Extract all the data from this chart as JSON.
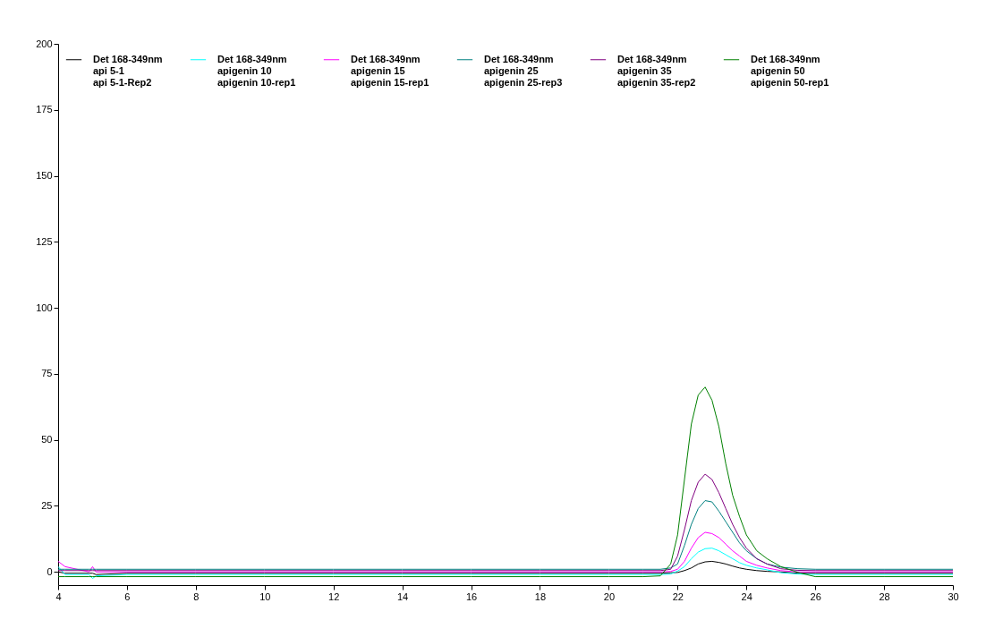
{
  "chart_data": {
    "type": "line",
    "xlim": [
      4,
      30
    ],
    "xticks": [
      4,
      6,
      8,
      10,
      12,
      14,
      16,
      18,
      20,
      22,
      24,
      26,
      28,
      30
    ],
    "ylim": [
      -5,
      200
    ],
    "yticks": [
      0,
      25,
      50,
      75,
      100,
      125,
      150,
      175,
      200
    ],
    "grid": false,
    "legend": "top",
    "marker": "none",
    "line_style": "solid",
    "x": [
      4,
      4.2,
      4.9,
      5.0,
      5.1,
      6,
      8,
      10,
      12,
      14,
      16,
      18,
      20,
      21,
      21.5,
      21.8,
      22,
      22.2,
      22.4,
      22.6,
      22.8,
      23,
      23.2,
      23.4,
      23.6,
      23.8,
      24,
      24.3,
      24.6,
      25,
      25.5,
      26,
      28,
      30
    ],
    "series": [
      {
        "name": "Det 168-349nm\napi 5-1\napi 5-1-Rep2",
        "color": "#000000",
        "values": [
          0,
          -0.5,
          -0.5,
          -0.5,
          -1,
          -0.5,
          -0.5,
          -0.5,
          -0.5,
          -0.5,
          -0.5,
          -0.5,
          -0.5,
          -0.5,
          -0.5,
          -0.3,
          -0.2,
          0.5,
          1.5,
          3,
          3.8,
          4,
          3.6,
          3,
          2.2,
          1.5,
          1,
          0.5,
          0.2,
          0,
          -0.5,
          -0.5,
          -0.5,
          -0.5
        ]
      },
      {
        "name": "Det 168-349nm\napigenin 10\napigenin 10-rep1",
        "color": "#00ffff",
        "values": [
          2,
          -1,
          -1,
          -2.5,
          -1.5,
          -1,
          -1,
          -1,
          -1,
          -1,
          -1,
          -1,
          -1,
          -1,
          -1,
          -0.8,
          0.3,
          2,
          5,
          7.5,
          8.8,
          9,
          8,
          6.5,
          5,
          3.5,
          2.5,
          1.5,
          0.8,
          -0.3,
          -0.8,
          -1,
          -1,
          -1
        ]
      },
      {
        "name": "Det 168-349nm\napigenin 15\napigenin 15-rep1",
        "color": "#ff00ff",
        "values": [
          4,
          2,
          0,
          2,
          0,
          0,
          0,
          0,
          0,
          0,
          0,
          0,
          0,
          0,
          0,
          0.2,
          1,
          4,
          9,
          13,
          15,
          14.5,
          13,
          10.5,
          8,
          6,
          4,
          2.5,
          1.5,
          0.5,
          0,
          0,
          0,
          0
        ]
      },
      {
        "name": "Det 168-349nm\napigenin 25\napigenin 25-rep3",
        "color": "#008080",
        "values": [
          1,
          1,
          1,
          1,
          1,
          1,
          1,
          1,
          1,
          1,
          1,
          1,
          1,
          1,
          1,
          1.5,
          3,
          10,
          18,
          24,
          27,
          26.5,
          23,
          19,
          15,
          11,
          8,
          5,
          3,
          1.8,
          1.2,
          1,
          1,
          1
        ]
      },
      {
        "name": "Det 168-349nm\napigenin 35\napigenin 35-rep2",
        "color": "#800080",
        "values": [
          0.5,
          0.5,
          0.5,
          0.5,
          0.5,
          0.5,
          0.5,
          0.5,
          0.5,
          0.5,
          0.5,
          0.5,
          0.5,
          0.5,
          0.5,
          1,
          6,
          16,
          27,
          34,
          37,
          35,
          30,
          24,
          18,
          13,
          9,
          5,
          3,
          1.2,
          0.6,
          0.5,
          0.5,
          0.5
        ]
      },
      {
        "name": "Det 168-349nm\napigenin 50\napigenin 50-rep1",
        "color": "#008000",
        "values": [
          -1.8,
          -1.8,
          -1.8,
          -1.8,
          -1.8,
          -1.8,
          -1.8,
          -1.8,
          -1.8,
          -1.8,
          -1.8,
          -1.8,
          -1.8,
          -1.8,
          -1.5,
          3,
          14,
          35,
          56,
          67,
          70,
          65,
          55,
          41,
          29,
          21,
          14,
          8,
          5,
          2,
          -0.2,
          -1.8,
          -1.8,
          -1.8
        ]
      }
    ]
  }
}
